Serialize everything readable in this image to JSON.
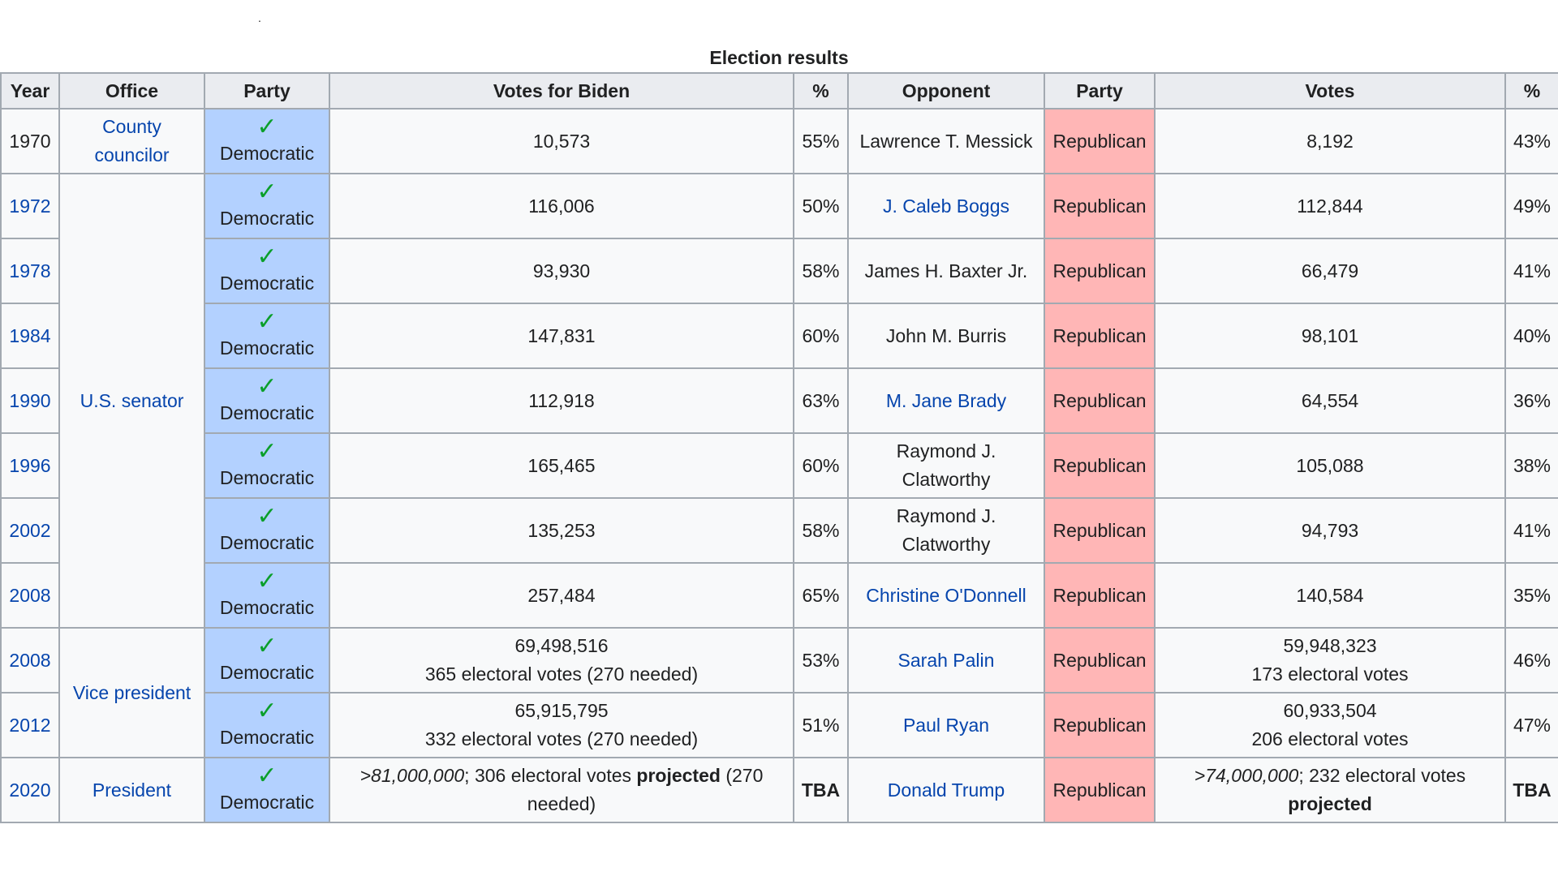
{
  "caption": "Election results",
  "stray_mark": ".",
  "columns": {
    "year": "Year",
    "office": "Office",
    "party": "Party",
    "votes_biden": "Votes for Biden",
    "pct": "%",
    "opponent": "Opponent",
    "opp_party": "Party",
    "votes": "Votes",
    "opp_pct": "%"
  },
  "icons": {
    "win_check": "✓"
  },
  "colors": {
    "democratic": "#b3d1ff",
    "republican": "#ffb6b6",
    "link": "#0645ad",
    "check": "#0a9f2a"
  },
  "offices": {
    "county": "County councilor",
    "senator": "U.S. senator",
    "vp": "Vice president",
    "president": "President"
  },
  "rows": [
    {
      "year": "1970",
      "party": "Democratic",
      "votes": "10,573",
      "pct": "55%",
      "opponent": "Lawrence T. Messick",
      "opp_party": "Republican",
      "opp_votes": "8,192",
      "opp_pct": "43%"
    },
    {
      "year": "1972",
      "party": "Democratic",
      "votes": "116,006",
      "pct": "50%",
      "opponent": "J. Caleb Boggs",
      "opp_party": "Republican",
      "opp_votes": "112,844",
      "opp_pct": "49%"
    },
    {
      "year": "1978",
      "party": "Democratic",
      "votes": "93,930",
      "pct": "58%",
      "opponent": "James H. Baxter Jr.",
      "opp_party": "Republican",
      "opp_votes": "66,479",
      "opp_pct": "41%"
    },
    {
      "year": "1984",
      "party": "Democratic",
      "votes": "147,831",
      "pct": "60%",
      "opponent": "John M. Burris",
      "opp_party": "Republican",
      "opp_votes": "98,101",
      "opp_pct": "40%"
    },
    {
      "year": "1990",
      "party": "Democratic",
      "votes": "112,918",
      "pct": "63%",
      "opponent": "M. Jane Brady",
      "opp_party": "Republican",
      "opp_votes": "64,554",
      "opp_pct": "36%"
    },
    {
      "year": "1996",
      "party": "Democratic",
      "votes": "165,465",
      "pct": "60%",
      "opponent_line1": "Raymond J.",
      "opponent_line2": "Clatworthy",
      "opp_party": "Republican",
      "opp_votes": "105,088",
      "opp_pct": "38%"
    },
    {
      "year": "2002",
      "party": "Democratic",
      "votes": "135,253",
      "pct": "58%",
      "opponent_line1": "Raymond J.",
      "opponent_line2": "Clatworthy",
      "opp_party": "Republican",
      "opp_votes": "94,793",
      "opp_pct": "41%"
    },
    {
      "year": "2008",
      "party": "Democratic",
      "votes": "257,484",
      "pct": "65%",
      "opponent": "Christine O'Donnell",
      "opp_party": "Republican",
      "opp_votes": "140,584",
      "opp_pct": "35%"
    },
    {
      "year": "2008",
      "party": "Democratic",
      "votes_line1": "69,498,516",
      "votes_line2": "365 electoral votes (270 needed)",
      "pct": "53%",
      "opponent": "Sarah Palin",
      "opp_party": "Republican",
      "opp_votes_line1": "59,948,323",
      "opp_votes_line2": "173 electoral votes",
      "opp_pct": "46%"
    },
    {
      "year": "2012",
      "party": "Democratic",
      "votes_line1": "65,915,795",
      "votes_line2": "332 electoral votes (270 needed)",
      "pct": "51%",
      "opponent": "Paul Ryan",
      "opp_party": "Republican",
      "opp_votes_line1": "60,933,504",
      "opp_votes_line2": "206 electoral votes",
      "opp_pct": "47%"
    },
    {
      "year": "2020",
      "party": "Democratic",
      "votes_ital": ">81,000,000",
      "votes_mid": "; 306 electoral votes ",
      "votes_bold": "projected",
      "votes_end": " (270 needed)",
      "pct": "TBA",
      "opponent": "Donald Trump",
      "opp_party": "Republican",
      "opp_votes_ital": ">74,000,000",
      "opp_votes_mid": "; 232 electoral votes ",
      "opp_votes_bold": "projected",
      "opp_pct": "TBA"
    }
  ]
}
